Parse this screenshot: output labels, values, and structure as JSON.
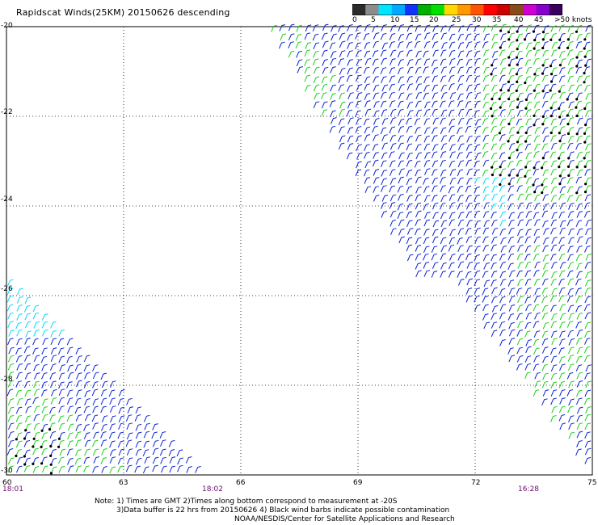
{
  "title": "Rapidscat Winds(25KM) 20150626 descending",
  "colorbar": {
    "labels": [
      "0",
      "5",
      "10",
      "15",
      "20",
      "25",
      "30",
      "35",
      "40",
      "45",
      ">50 knots"
    ],
    "colors": [
      "#2b2b2b",
      "#8c8c8c",
      "#00e5ff",
      "#00a8ff",
      "#1033ff",
      "#00b000",
      "#00e000",
      "#ffd800",
      "#ff9900",
      "#ff5500",
      "#ff0000",
      "#cc0000",
      "#8b4a1a",
      "#d000d0",
      "#8800cc",
      "#3a0060"
    ]
  },
  "axes": {
    "y_ticks": [
      "-20",
      "-22",
      "-24",
      "-26",
      "-28",
      "-30"
    ],
    "x_ticks": [
      "60",
      "63",
      "66",
      "69",
      "72",
      "75"
    ],
    "lat_range": [
      -30,
      -20
    ],
    "lon_range": [
      60,
      75
    ]
  },
  "pass_times": [
    "18:01",
    "18:02",
    "16:28"
  ],
  "notes": [
    "Note: 1) Times are GMT 2)Times along bottom correspond to measurement at -20S",
    "3)Data buffer is 22 hrs from 20150626 4) Black wind barbs indicate possible contamination",
    "NOAA/NESDIS/Center for Satellite Applications and Research"
  ],
  "legend_colors": {
    "light": "#00d8ff",
    "blue": "#0a22d8",
    "green": "#16d016",
    "black": "#000000"
  }
}
